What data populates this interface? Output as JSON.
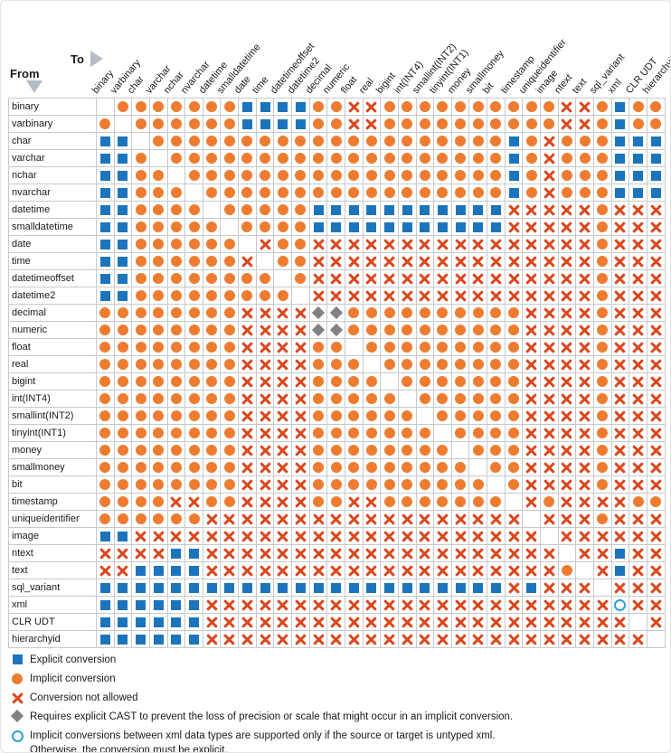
{
  "header": {
    "from_label": "From",
    "to_label": "To"
  },
  "types": [
    "binary",
    "varbinary",
    "char",
    "varchar",
    "nchar",
    "nvarchar",
    "datetime",
    "smalldatetime",
    "date",
    "time",
    "datetimeoffset",
    "datetime2",
    "decimal",
    "numeric",
    "float",
    "real",
    "bigint",
    "int(INT4)",
    "smallint(INT2)",
    "tinyint(INT1)",
    "money",
    "smallmoney",
    "bit",
    "timestamp",
    "uniqueidentifier",
    "image",
    "ntext",
    "text",
    "sql_variant",
    "xml",
    "CLR UDT",
    "hierarchyid"
  ],
  "matrix": [
    ".IIIIIIIEEEEIIXXIIIIIIIIIIXXIEII",
    "I.IIIIIIEEEEIIXXIIIIIIIIIIXXIEII",
    "EE.IIIIIIIIIIIIIIIIIIIIEIXIIIEEE",
    "EEI.IIIIIIIIIIIIIIIIIIIEIXIIIEEE",
    "EEII.IIIIIIIIIIIIIIIIIIEIXIIIEEE",
    "EEIII.IIIIIIIIIIIIIIIIIEIXIIIEEE",
    "EEIIII.IIIIIEEEEEEEEEEEXXXXXIXXX",
    "EEIIIII.IIIIEEEEEEEEEEEXXXXXIXXX",
    "EEIIIIII.XIIXXXXXXXXXXXXXXXXIXXX",
    "EEIIIIIIX.IIXXXXXXXXXXXXXXXXIXXX",
    "EEIIIIIIII.IXXXXXXXXXXXXXXXXIXXX",
    "EEIIIIIIIII.XXXXXXXXXXXXXXXXIXXX",
    "IIIIIIIIXXXXDDIIIIIIIIIIXXXXIXXX",
    "IIIIIIIIXXXXDDIIIIIIIIIIXXXXIXXX",
    "IIIIIIIIXXXXII.IIIIIIIIIXXXXIXXX",
    "IIIIIIIIXXXXIII.IIIIIIIIXXXXIXXX",
    "IIIIIIIIXXXXIIII.IIIIIIIXXXXIXXX",
    "IIIIIIIIXXXXIIIII.IIIIIIXXXXIXXX",
    "IIIIIIIIXXXXIIIIII.IIIIIXXXXIXXX",
    "IIIIIIIIXXXXIIIIIII.IIIIXXXXIXXX",
    "IIIIIIIIXXXXIIIIIIII.IIIXXXXIXXX",
    "IIIIIIIIXXXXIIIIIIIII.IIXXXXIXXX",
    "IIIIIIIIXXXXIIIIIIIIII.IXXXXIXXX",
    "IIIIXXIIXXXXIIXXIIIIIII.XIXXXXII",
    "IIIIIIXXXXXXXXXXXXXXXXXX.XXXIXXX",
    "EEXXXXXXXXXXXXXXXXXXXXXXX.XXXXXX",
    "XXXXEEXXXXXXXXXXXXXXXXXXXX.XXEXX",
    "XXEEEEXXXXXXXXXXXXXXXXXXXXI.XEXX",
    "EEEEEEEEEEEEEEEEEEEEEEEXEXXX.XXX",
    "EEEEEEXXXXXXXXXXXXXXXXXXXXXXXOXX",
    "EEEEEEXXXXXXXXXXXXXXXXXXXXXXXX.X",
    "EEEEEEXXXXXXXXXXXXXXXXXXXXXXXXX."
  ],
  "symbols": {
    "E": {
      "name": "explicit-conversion",
      "shape": "square",
      "color": "#1C75BC"
    },
    "I": {
      "name": "implicit-conversion",
      "shape": "circle",
      "color": "#EE7C30"
    },
    "X": {
      "name": "conversion-not-allowed",
      "shape": "cross",
      "color": "#D9481E"
    },
    "D": {
      "name": "requires-explicit-cast",
      "shape": "diamond",
      "color": "#7F8284"
    },
    "O": {
      "name": "xml-untyped-implicit",
      "shape": "open-circle",
      "color": "#2B9FD8"
    }
  },
  "legend": [
    {
      "symbol": "E",
      "text": "Explicit conversion"
    },
    {
      "symbol": "I",
      "text": "Implicit conversion"
    },
    {
      "symbol": "X",
      "text": "Conversion not allowed"
    },
    {
      "symbol": "D",
      "text": "Requires explicit CAST to prevent the loss of precision or scale that might occur in an implicit conversion."
    },
    {
      "symbol": "O",
      "text": "Implicit conversions between xml data types are supported only if the source or target is untyped xml.",
      "text2": "Otherwise, the conversion must be explicit."
    }
  ]
}
